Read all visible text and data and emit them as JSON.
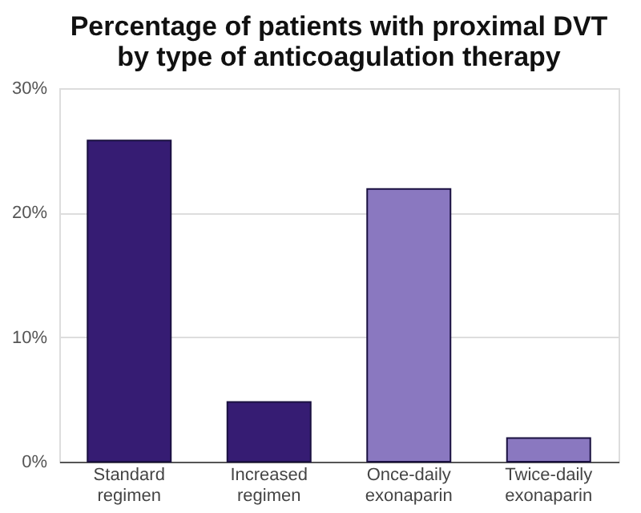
{
  "chart_data": {
    "type": "bar",
    "title": "Percentage of patients with proximal DVT by type of anticoagulation therapy",
    "categories": [
      "Standard regimen",
      "Increased regimen",
      "Once-daily exonaparin",
      "Twice-daily exonaparin"
    ],
    "values": [
      25.8,
      4.8,
      21.9,
      1.9
    ],
    "colors": [
      "#361c73",
      "#361c73",
      "#8a78c0",
      "#8a78c0"
    ],
    "ylim": [
      0,
      30
    ],
    "yticks": [
      {
        "value": 0,
        "label": "0%"
      },
      {
        "value": 10,
        "label": "10%"
      },
      {
        "value": 20,
        "label": "20%"
      },
      {
        "value": 30,
        "label": "30%"
      }
    ],
    "grid": "y"
  }
}
